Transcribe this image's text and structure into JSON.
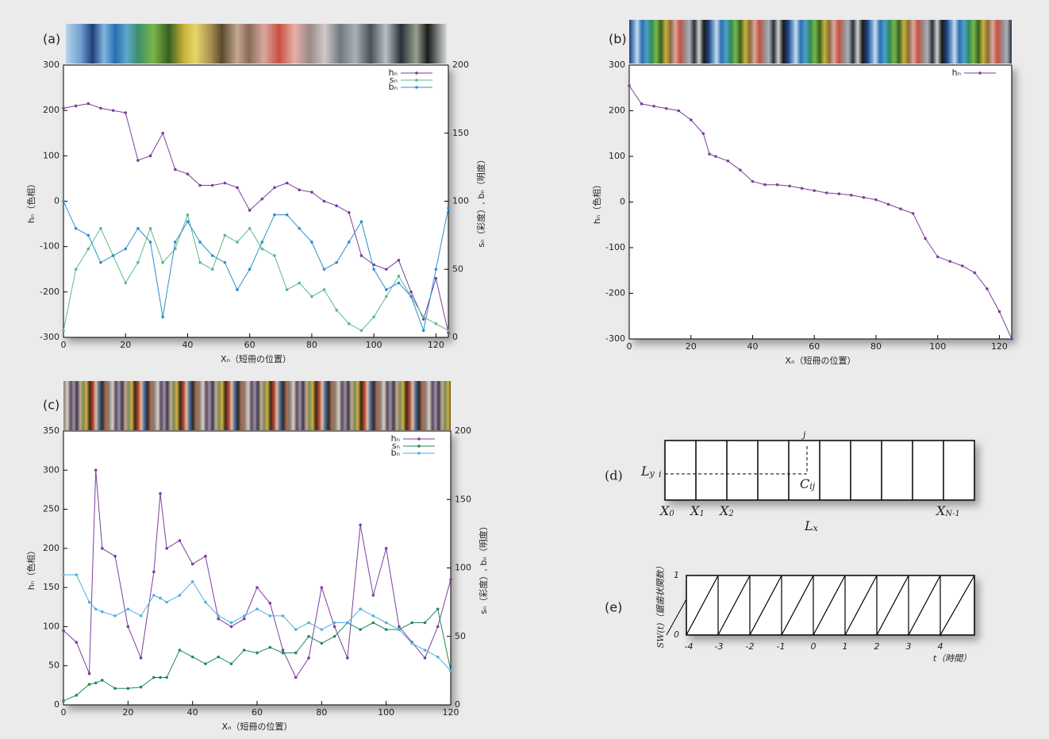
{
  "chart_data": [
    {
      "type": "line",
      "panel": "(a)",
      "xlabel": "Xₙ（短冊の位置）",
      "ylabel": "hₙ（色相）",
      "y2label": "sₙ（彩度）, bₙ（明度）",
      "legend": "upper right",
      "xlim": [
        0,
        124
      ],
      "xticks": [
        0,
        20,
        40,
        60,
        80,
        100,
        120
      ],
      "ylim": [
        -300,
        300
      ],
      "yticks": [
        -300,
        -200,
        -100,
        0,
        100,
        200,
        300
      ],
      "y2lim": [
        0,
        200
      ],
      "y2ticks": [
        0,
        50,
        100,
        150,
        200
      ],
      "x": [
        0,
        4,
        8,
        12,
        16,
        20,
        24,
        28,
        32,
        36,
        40,
        44,
        48,
        52,
        56,
        60,
        64,
        68,
        72,
        76,
        80,
        84,
        88,
        92,
        96,
        100,
        104,
        108,
        112,
        116,
        120,
        124
      ],
      "series": [
        {
          "name": "hₙ",
          "color": "#7a3f9e",
          "axis": "y",
          "values": [
            205,
            210,
            215,
            205,
            200,
            195,
            90,
            100,
            150,
            70,
            60,
            35,
            35,
            40,
            30,
            -20,
            5,
            30,
            40,
            25,
            20,
            0,
            -10,
            -25,
            -120,
            -140,
            -150,
            -130,
            -200,
            -260,
            -170,
            -290
          ]
        },
        {
          "name": "sₙ",
          "color": "#5cb88a",
          "axis": "y2",
          "values": [
            5,
            50,
            65,
            80,
            60,
            40,
            55,
            80,
            55,
            65,
            90,
            55,
            50,
            75,
            70,
            80,
            65,
            60,
            35,
            40,
            30,
            35,
            20,
            10,
            5,
            15,
            30,
            45,
            30,
            15,
            10,
            5
          ]
        },
        {
          "name": "bₙ",
          "color": "#2a8fd0",
          "axis": "y2",
          "values": [
            100,
            80,
            75,
            55,
            60,
            65,
            80,
            70,
            15,
            70,
            85,
            70,
            60,
            55,
            35,
            50,
            70,
            90,
            90,
            80,
            70,
            50,
            55,
            70,
            85,
            50,
            35,
            40,
            30,
            5,
            50,
            95
          ]
        }
      ]
    },
    {
      "type": "line",
      "panel": "(b)",
      "xlabel": "Xₙ（短冊の位置）",
      "ylabel": "hₙ（色相）",
      "legend": "upper right",
      "xlim": [
        0,
        124
      ],
      "xticks": [
        0,
        20,
        40,
        60,
        80,
        100,
        120
      ],
      "ylim": [
        -300,
        300
      ],
      "yticks": [
        -300,
        -200,
        -100,
        0,
        100,
        200,
        300
      ],
      "x": [
        0,
        4,
        8,
        12,
        16,
        20,
        24,
        26,
        28,
        32,
        36,
        40,
        44,
        48,
        52,
        56,
        60,
        64,
        68,
        72,
        76,
        80,
        84,
        88,
        92,
        96,
        100,
        104,
        108,
        112,
        116,
        120,
        124
      ],
      "series": [
        {
          "name": "hₙ",
          "color": "#7a3f9e",
          "axis": "y",
          "values": [
            255,
            215,
            210,
            205,
            200,
            180,
            150,
            105,
            100,
            90,
            70,
            45,
            38,
            38,
            35,
            30,
            25,
            20,
            18,
            15,
            10,
            5,
            -5,
            -15,
            -25,
            -80,
            -120,
            -130,
            -140,
            -155,
            -190,
            -240,
            -300
          ]
        }
      ]
    },
    {
      "type": "line",
      "panel": "(c)",
      "xlabel": "Xₙ（短冊の位置）",
      "ylabel": "hₙ（色相）",
      "y2label": "sₙ（彩度）, bₙ（明度）",
      "legend": "upper right",
      "xlim": [
        0,
        120
      ],
      "xticks": [
        0,
        20,
        40,
        60,
        80,
        100,
        120
      ],
      "ylim": [
        0,
        350
      ],
      "yticks": [
        0,
        50,
        100,
        150,
        200,
        250,
        300,
        350
      ],
      "y2lim": [
        0,
        200
      ],
      "y2ticks": [
        0,
        50,
        100,
        150,
        200
      ],
      "x": [
        0,
        4,
        8,
        10,
        12,
        16,
        20,
        24,
        28,
        30,
        32,
        36,
        40,
        44,
        48,
        52,
        56,
        60,
        64,
        68,
        72,
        76,
        80,
        84,
        88,
        92,
        96,
        100,
        104,
        108,
        112,
        116,
        120
      ],
      "series": [
        {
          "name": "hₙ",
          "color": "#7a3f9e",
          "axis": "y",
          "values": [
            95,
            80,
            40,
            300,
            200,
            190,
            100,
            60,
            170,
            270,
            200,
            210,
            180,
            190,
            110,
            100,
            110,
            150,
            130,
            70,
            35,
            60,
            150,
            100,
            60,
            230,
            140,
            200,
            100,
            80,
            60,
            100,
            160
          ]
        },
        {
          "name": "sₙ",
          "color": "#1f8a5a",
          "axis": "y2",
          "values": [
            3,
            7,
            15,
            16,
            18,
            12,
            12,
            13,
            20,
            20,
            20,
            40,
            35,
            30,
            35,
            30,
            40,
            38,
            42,
            38,
            38,
            50,
            45,
            50,
            60,
            55,
            60,
            55,
            55,
            60,
            60,
            70,
            25
          ]
        },
        {
          "name": "bₙ",
          "color": "#4fb0e0",
          "axis": "y2",
          "values": [
            95,
            95,
            75,
            70,
            68,
            65,
            70,
            65,
            80,
            78,
            75,
            80,
            90,
            75,
            65,
            60,
            65,
            70,
            65,
            65,
            55,
            60,
            55,
            60,
            60,
            70,
            65,
            60,
            55,
            45,
            40,
            35,
            25
          ]
        }
      ]
    }
  ],
  "diagram_d": {
    "panel": "(d)",
    "ly": {
      "main": "L",
      "sub": "y"
    },
    "i": "i",
    "j": "j",
    "cij": {
      "main": "C",
      "sub": "ij"
    },
    "x_labels": [
      {
        "main": "X",
        "sub": "0"
      },
      {
        "main": "X",
        "sub": "1"
      },
      {
        "main": "X",
        "sub": "2"
      },
      {
        "main": "X",
        "sub": "N-1"
      }
    ],
    "lx": {
      "main": "L",
      "sub": "x"
    }
  },
  "diagram_e": {
    "panel": "(e)",
    "ylabel": "SW(t)（鋸歯状関数）",
    "top": "1",
    "bottom": "0",
    "ticks": [
      "-4",
      "-3",
      "-2",
      "-1",
      "0",
      "1",
      "2",
      "3",
      "4"
    ],
    "xlabel": "t（時間）"
  }
}
